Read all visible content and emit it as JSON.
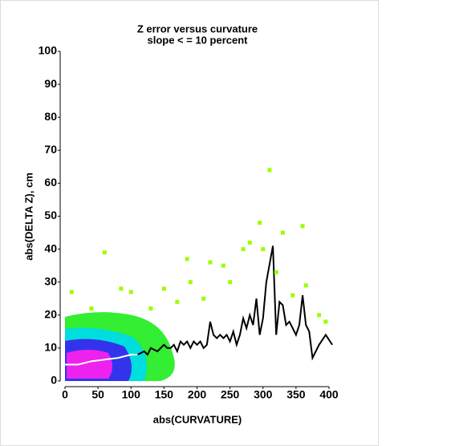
{
  "chart_data": {
    "type": "line",
    "title": "Z error versus curvature",
    "subtitle": "slope < = 10 percent",
    "x_label": "abs(CURVATURE)",
    "y_label": "abs(DELTA Z), cm",
    "xlim": [
      0,
      400
    ],
    "xticks": [
      0,
      50,
      100,
      150,
      200,
      250,
      300,
      350,
      400
    ],
    "ylim": [
      0,
      100
    ],
    "yticks": [
      0,
      10,
      20,
      30,
      40,
      50,
      60,
      70,
      80,
      90,
      100
    ],
    "series": [
      {
        "color": "#000000",
        "x": [
          110,
          120,
          125,
          130,
          140,
          150,
          155,
          160,
          165,
          170,
          175,
          180,
          185,
          190,
          195,
          200,
          205,
          210,
          215,
          220,
          225,
          230,
          235,
          240,
          245,
          250,
          255,
          260,
          265,
          270,
          275,
          280,
          285,
          290,
          295,
          300,
          305,
          315,
          320,
          325,
          330,
          335,
          340,
          345,
          350,
          355,
          360,
          365,
          370,
          375,
          385,
          395,
          405
        ],
        "values": [
          8,
          9,
          8,
          10,
          9,
          11,
          10,
          10,
          11,
          9,
          12,
          11,
          12,
          10,
          12,
          11,
          12,
          10,
          11,
          18,
          14,
          13,
          14,
          13,
          14,
          12,
          15,
          11,
          14,
          19,
          16,
          20,
          17,
          25,
          14,
          19,
          30,
          41,
          14,
          24,
          23,
          17,
          18,
          16,
          14,
          17,
          26,
          17,
          15,
          7,
          11,
          14,
          11
        ]
      },
      {
        "color": "#ffffff",
        "x": [
          0,
          20,
          40,
          60,
          80,
          100,
          110
        ],
        "values": [
          5,
          5,
          6,
          6.5,
          7,
          8,
          8
        ]
      },
      {
        "color": "#99ff00",
        "x": [
          60,
          185,
          220,
          310,
          295,
          360,
          330,
          270,
          240,
          190,
          280,
          300,
          150,
          100,
          10,
          320,
          345,
          365,
          385,
          395,
          250,
          210,
          170,
          130,
          85,
          40
        ],
        "values": [
          39,
          37,
          36,
          64,
          48,
          47,
          45,
          40,
          35,
          30,
          42,
          40,
          28,
          27,
          27,
          33,
          26,
          29,
          20,
          18,
          30,
          25,
          24,
          22,
          28,
          22
        ]
      }
    ]
  }
}
